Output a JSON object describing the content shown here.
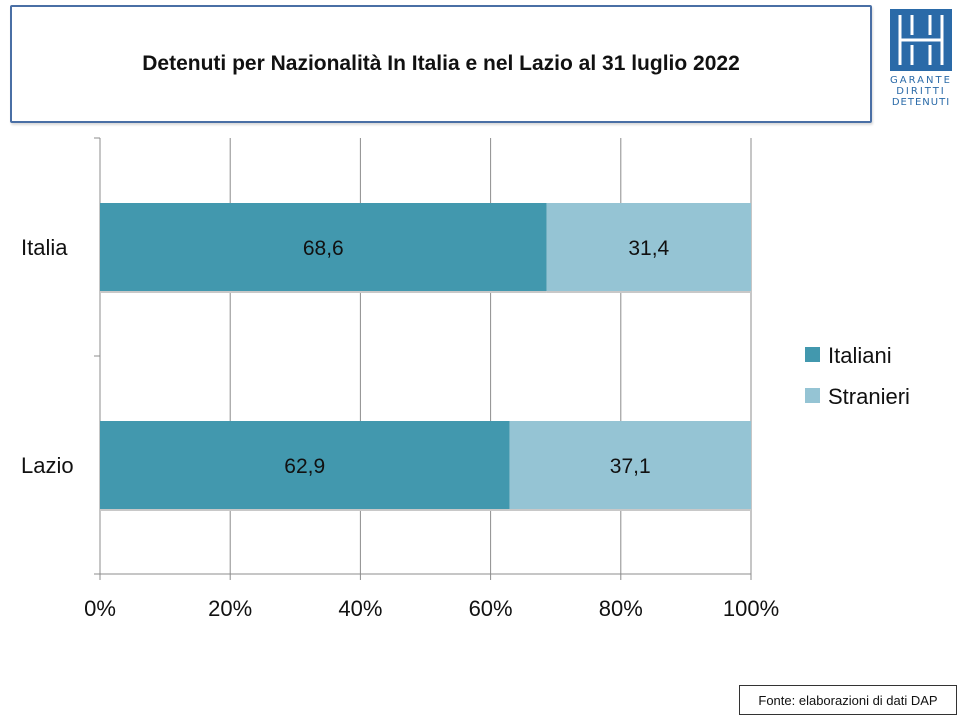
{
  "title": "Detenuti per Nazionalità In Italia e nel Lazio al 31 luglio 2022",
  "source": "Fonte: elaborazioni di dati DAP",
  "logo": {
    "icon": "garante-logo-icon",
    "lines": [
      "GARANTE",
      "DIRITTI",
      "DETENUTI"
    ],
    "color": "#2a6aa8"
  },
  "chart_data": {
    "type": "bar",
    "orientation": "horizontal",
    "stacked": "percent",
    "categories": [
      "Italia",
      "Lazio"
    ],
    "series": [
      {
        "name": "Italiani",
        "values": [
          68.6,
          62.9
        ],
        "labels": [
          "68,6",
          "62,9"
        ],
        "color": "#4298ae"
      },
      {
        "name": "Stranieri",
        "values": [
          31.4,
          37.1
        ],
        "labels": [
          "31,4",
          "37,1"
        ],
        "color": "#95c4d4"
      }
    ],
    "xlim": [
      0,
      100
    ],
    "xticks": [
      0,
      20,
      40,
      60,
      80,
      100
    ],
    "xtick_labels": [
      "0%",
      "20%",
      "40%",
      "60%",
      "80%",
      "100%"
    ],
    "grid": true,
    "legend": "right"
  }
}
